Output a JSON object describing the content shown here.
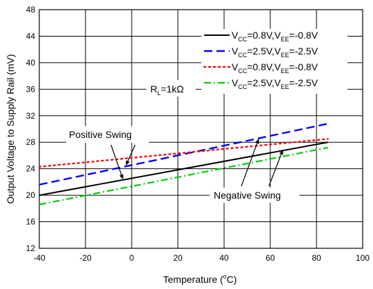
{
  "chart_data": {
    "type": "line",
    "title": "",
    "xlabel": "Temperature (",
    "xlabel_sup": "o",
    "xlabel_end": "C)",
    "ylabel": "Output Voltage to Supply Rail (mV)",
    "xlim": [
      -40,
      100
    ],
    "ylim": [
      12,
      48
    ],
    "xticks": [
      -40,
      -20,
      0,
      20,
      40,
      60,
      80,
      100
    ],
    "yticks": [
      12,
      16,
      20,
      24,
      28,
      32,
      36,
      40,
      44,
      48
    ],
    "grid": true,
    "legend_position": "top-right",
    "series": [
      {
        "name": "VCC=0.8V,VEE=-0.8V",
        "legend_parts": [
          "V",
          "CC",
          "=0.8V,V",
          "EE",
          "=-0.8V"
        ],
        "color": "#000000",
        "dash": "solid",
        "x": [
          -40,
          85
        ],
        "y": [
          20.0,
          28.0
        ]
      },
      {
        "name": "VCC=2.5V,VEE=-2.5V",
        "legend_parts": [
          "V",
          "CC",
          "=2.5V,V",
          "EE",
          "=-2.5V"
        ],
        "color": "#0000ff",
        "dash": "dashed",
        "x": [
          -40,
          85
        ],
        "y": [
          21.6,
          30.8
        ]
      },
      {
        "name": "VCC=0.8V,VEE=-0.8V",
        "legend_parts": [
          "V",
          "CC",
          "=0.8V,V",
          "EE",
          "=-0.8V"
        ],
        "color": "#ff0000",
        "dash": "dotted",
        "x": [
          -40,
          85
        ],
        "y": [
          24.3,
          28.5
        ]
      },
      {
        "name": "VCC=2.5V,VEE=-2.5V",
        "legend_parts": [
          "V",
          "CC",
          "=2.5V,V",
          "EE",
          "=-2.5V"
        ],
        "color": "#00cc00",
        "dash": "dashdot",
        "x": [
          -40,
          85
        ],
        "y": [
          18.6,
          27.2
        ]
      }
    ],
    "annotations": {
      "rl_label": "R",
      "rl_sub": "L",
      "rl_value": "=1kΩ",
      "positive_swing": "Positive Swing",
      "negative_swing": "Negative Swing"
    }
  }
}
